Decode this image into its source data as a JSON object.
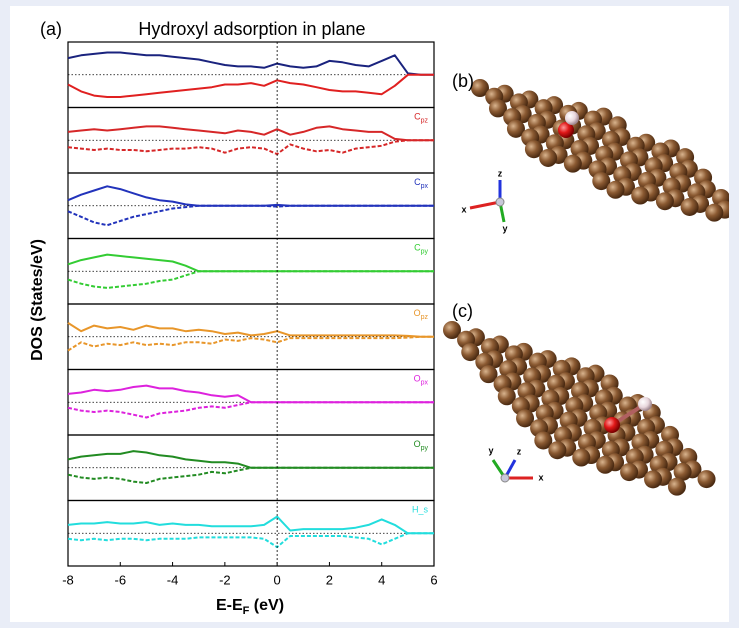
{
  "chart_data": {
    "type": "line",
    "panel_label": "(a)",
    "title": "Hydroxyl adsorption in plane",
    "ylabel": "DOS (States/eV)",
    "xlabel": "E-E",
    "xlabel_sub": "F",
    "xlabel_unit": " (eV)",
    "x": [
      -8,
      -7.5,
      -7,
      -6.5,
      -6,
      -5.5,
      -5,
      -4.5,
      -4,
      -3.5,
      -3,
      -2.5,
      -2,
      -1.5,
      -1,
      -0.5,
      0,
      0.5,
      1,
      1.5,
      2,
      2.5,
      3,
      3.5,
      4,
      4.5,
      5,
      5.5,
      6
    ],
    "xlim": [
      -8,
      6
    ],
    "xticks": [
      -8,
      -6,
      -4,
      -2,
      0,
      2,
      4,
      6
    ],
    "panels": [
      {
        "ylim": [
          -1,
          1
        ],
        "series": [
          {
            "color": "#1a237e",
            "linestyle": "solid",
            "values": [
              0.6,
              0.7,
              0.75,
              0.8,
              0.8,
              0.75,
              0.7,
              0.7,
              0.65,
              0.6,
              0.55,
              0.45,
              0.35,
              0.3,
              0.3,
              0.25,
              0.4,
              0.3,
              0.25,
              0.3,
              0.5,
              0.45,
              0.35,
              0.3,
              0.5,
              0.7,
              0.05,
              0,
              0
            ]
          },
          {
            "color": "#e02020",
            "linestyle": "solid",
            "values": [
              -0.35,
              -0.6,
              -0.75,
              -0.8,
              -0.8,
              -0.75,
              -0.7,
              -0.65,
              -0.6,
              -0.55,
              -0.5,
              -0.45,
              -0.35,
              -0.35,
              -0.3,
              -0.4,
              -0.2,
              -0.3,
              -0.35,
              -0.45,
              -0.55,
              -0.6,
              -0.6,
              -0.65,
              -0.7,
              -0.4,
              0,
              0,
              0
            ]
          }
        ]
      },
      {
        "label": "C",
        "label_sub": "pz",
        "ylim": [
          -1,
          1
        ],
        "series": [
          {
            "color": "#d62728",
            "linestyle": "solid",
            "values": [
              0.3,
              0.35,
              0.4,
              0.35,
              0.4,
              0.45,
              0.5,
              0.5,
              0.45,
              0.4,
              0.35,
              0.3,
              0.25,
              0.35,
              0.3,
              0.2,
              0.4,
              0.2,
              0.3,
              0.45,
              0.5,
              0.4,
              0.35,
              0.3,
              0.3,
              0.05,
              0,
              0,
              0
            ]
          },
          {
            "color": "#d62728",
            "linestyle": "dashed",
            "values": [
              -0.25,
              -0.3,
              -0.35,
              -0.3,
              -0.35,
              -0.35,
              -0.4,
              -0.35,
              -0.3,
              -0.3,
              -0.25,
              -0.3,
              -0.45,
              -0.3,
              -0.25,
              -0.3,
              -0.5,
              -0.15,
              -0.3,
              -0.4,
              -0.35,
              -0.45,
              -0.3,
              -0.25,
              -0.2,
              -0.05,
              0,
              0,
              0
            ]
          }
        ]
      },
      {
        "label": "C",
        "label_sub": "px",
        "ylim": [
          -1,
          1
        ],
        "series": [
          {
            "color": "#2233bb",
            "linestyle": "solid",
            "values": [
              0.2,
              0.4,
              0.55,
              0.7,
              0.6,
              0.45,
              0.3,
              0.2,
              0.15,
              0.05,
              0,
              0,
              0,
              0,
              0,
              0,
              0.03,
              0,
              0,
              0,
              0,
              0,
              0,
              0,
              0,
              0,
              0,
              0,
              0
            ]
          },
          {
            "color": "#2233bb",
            "linestyle": "dashed",
            "values": [
              -0.2,
              -0.4,
              -0.6,
              -0.7,
              -0.55,
              -0.4,
              -0.3,
              -0.2,
              -0.1,
              -0.05,
              0,
              0,
              0,
              0,
              0,
              0,
              -0.03,
              0,
              0,
              0,
              0,
              0,
              0,
              0,
              0,
              0,
              0,
              0,
              0
            ]
          }
        ]
      },
      {
        "label": "C",
        "label_sub": "py",
        "ylim": [
          -1,
          1
        ],
        "series": [
          {
            "color": "#33cc33",
            "linestyle": "solid",
            "values": [
              0.25,
              0.4,
              0.5,
              0.6,
              0.55,
              0.5,
              0.45,
              0.4,
              0.35,
              0.2,
              0,
              0,
              0,
              0,
              0,
              0,
              0,
              0,
              0,
              0,
              0,
              0,
              0,
              0,
              0,
              0,
              0,
              0,
              0
            ]
          },
          {
            "color": "#33cc33",
            "linestyle": "dashed",
            "values": [
              -0.3,
              -0.45,
              -0.55,
              -0.6,
              -0.55,
              -0.5,
              -0.45,
              -0.35,
              -0.3,
              -0.15,
              0,
              0,
              0,
              0,
              0,
              0,
              0,
              0,
              0,
              0,
              0,
              0,
              0,
              0,
              0,
              0,
              0,
              0,
              0
            ]
          }
        ]
      },
      {
        "label": "O",
        "label_sub": "pz",
        "ylim": [
          -1,
          1
        ],
        "series": [
          {
            "color": "#e8962a",
            "linestyle": "solid",
            "values": [
              0.5,
              0.2,
              0.4,
              0.3,
              0.35,
              0.25,
              0.4,
              0.3,
              0.3,
              0.2,
              0.25,
              0.2,
              0.1,
              0.15,
              0.05,
              0.1,
              0.2,
              0.05,
              0.05,
              0.05,
              0.05,
              0.05,
              0.05,
              0.05,
              0.05,
              0.05,
              0.03,
              0,
              0
            ]
          },
          {
            "color": "#e8962a",
            "linestyle": "dashed",
            "values": [
              -0.5,
              -0.2,
              -0.35,
              -0.25,
              -0.3,
              -0.2,
              -0.3,
              -0.25,
              -0.3,
              -0.2,
              -0.2,
              -0.25,
              -0.1,
              -0.15,
              -0.05,
              -0.1,
              -0.2,
              -0.05,
              -0.05,
              -0.05,
              -0.05,
              -0.05,
              -0.05,
              -0.05,
              -0.05,
              -0.05,
              -0.03,
              0,
              0
            ]
          }
        ]
      },
      {
        "label": "O",
        "label_sub": "px",
        "ylim": [
          -1,
          1
        ],
        "series": [
          {
            "color": "#dd22dd",
            "linestyle": "solid",
            "values": [
              0.3,
              0.35,
              0.45,
              0.4,
              0.45,
              0.55,
              0.6,
              0.5,
              0.5,
              0.4,
              0.35,
              0.25,
              0.2,
              0.25,
              0,
              0,
              0,
              0,
              0,
              0,
              0,
              0,
              0,
              0,
              0,
              0,
              0,
              0,
              0
            ]
          },
          {
            "color": "#dd22dd",
            "linestyle": "dashed",
            "values": [
              -0.2,
              -0.3,
              -0.35,
              -0.3,
              -0.35,
              -0.45,
              -0.55,
              -0.4,
              -0.35,
              -0.3,
              -0.2,
              -0.15,
              -0.2,
              -0.1,
              0,
              0,
              0,
              0,
              0,
              0,
              0,
              0,
              0,
              0,
              0,
              0,
              0,
              0,
              0
            ]
          }
        ]
      },
      {
        "label": "O",
        "label_sub": "py",
        "ylim": [
          -1,
          1
        ],
        "series": [
          {
            "color": "#228b22",
            "linestyle": "solid",
            "values": [
              0.3,
              0.4,
              0.45,
              0.5,
              0.5,
              0.6,
              0.55,
              0.45,
              0.4,
              0.3,
              0.25,
              0.2,
              0.2,
              0.15,
              0,
              0,
              0,
              0,
              0,
              0,
              0,
              0,
              0,
              0,
              0,
              0,
              0,
              0,
              0
            ]
          },
          {
            "color": "#228b22",
            "linestyle": "dashed",
            "values": [
              -0.25,
              -0.35,
              -0.4,
              -0.35,
              -0.4,
              -0.5,
              -0.55,
              -0.4,
              -0.35,
              -0.3,
              -0.25,
              -0.15,
              -0.2,
              -0.1,
              0,
              0,
              0,
              0,
              0,
              0,
              0,
              0,
              0,
              0,
              0,
              0,
              0,
              0,
              0
            ]
          }
        ]
      },
      {
        "label": "H_s",
        "ylim": [
          -1,
          1
        ],
        "series": [
          {
            "color": "#22dddd",
            "linestyle": "solid",
            "values": [
              0.3,
              0.35,
              0.35,
              0.4,
              0.35,
              0.35,
              0.4,
              0.3,
              0.35,
              0.3,
              0.3,
              0.25,
              0.25,
              0.25,
              0.25,
              0.3,
              0.6,
              0.1,
              0.15,
              0.15,
              0.15,
              0.15,
              0.2,
              0.3,
              0.5,
              0.3,
              0,
              0,
              0
            ]
          },
          {
            "color": "#22dddd",
            "linestyle": "dashed",
            "values": [
              -0.2,
              -0.25,
              -0.2,
              -0.25,
              -0.2,
              -0.2,
              -0.25,
              -0.2,
              -0.2,
              -0.2,
              -0.15,
              -0.15,
              -0.15,
              -0.15,
              -0.15,
              -0.2,
              -0.5,
              -0.1,
              -0.1,
              -0.1,
              -0.1,
              -0.1,
              -0.15,
              -0.2,
              -0.4,
              -0.2,
              0,
              0,
              0
            ]
          }
        ]
      }
    ]
  },
  "structures": [
    {
      "label": "(b)",
      "axes": [
        "z",
        "x",
        "y"
      ]
    },
    {
      "label": "(c)",
      "axes": [
        "y",
        "z",
        "x"
      ]
    }
  ]
}
